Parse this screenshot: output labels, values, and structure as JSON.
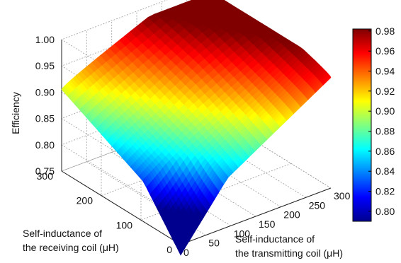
{
  "chart_data": {
    "type": "surface",
    "title": "",
    "zlabel": "Efficiency",
    "xlabel_lines": [
      "Self-inductance of",
      "the transmitting coil (μH)"
    ],
    "ylabel_lines": [
      "Self-inductance of",
      "the receiving coil (μH)"
    ],
    "x_ticks": [
      "0",
      "50",
      "100",
      "150",
      "200",
      "250",
      "300"
    ],
    "y_ticks": [
      "0",
      "100",
      "200",
      "300"
    ],
    "z_ticks": [
      "0.75",
      "0.80",
      "0.85",
      "0.90",
      "0.95",
      "1.00"
    ],
    "xlim": [
      0,
      300
    ],
    "ylim": [
      0,
      300
    ],
    "zlim": [
      0.75,
      1.0
    ],
    "colorbar_ticks": [
      "0.80",
      "0.82",
      "0.84",
      "0.86",
      "0.88",
      "0.90",
      "0.92",
      "0.94",
      "0.96",
      "0.98"
    ],
    "colorbar_range": [
      0.79,
      0.982
    ],
    "colormap": "jet",
    "grid": true,
    "corner_values": [
      {
        "x": 0,
        "y": 0,
        "z": 0.79
      },
      {
        "x": 300,
        "y": 0,
        "z": 0.96
      },
      {
        "x": 0,
        "y": 300,
        "z": 0.905
      },
      {
        "x": 300,
        "y": 300,
        "z": 0.98
      }
    ]
  }
}
